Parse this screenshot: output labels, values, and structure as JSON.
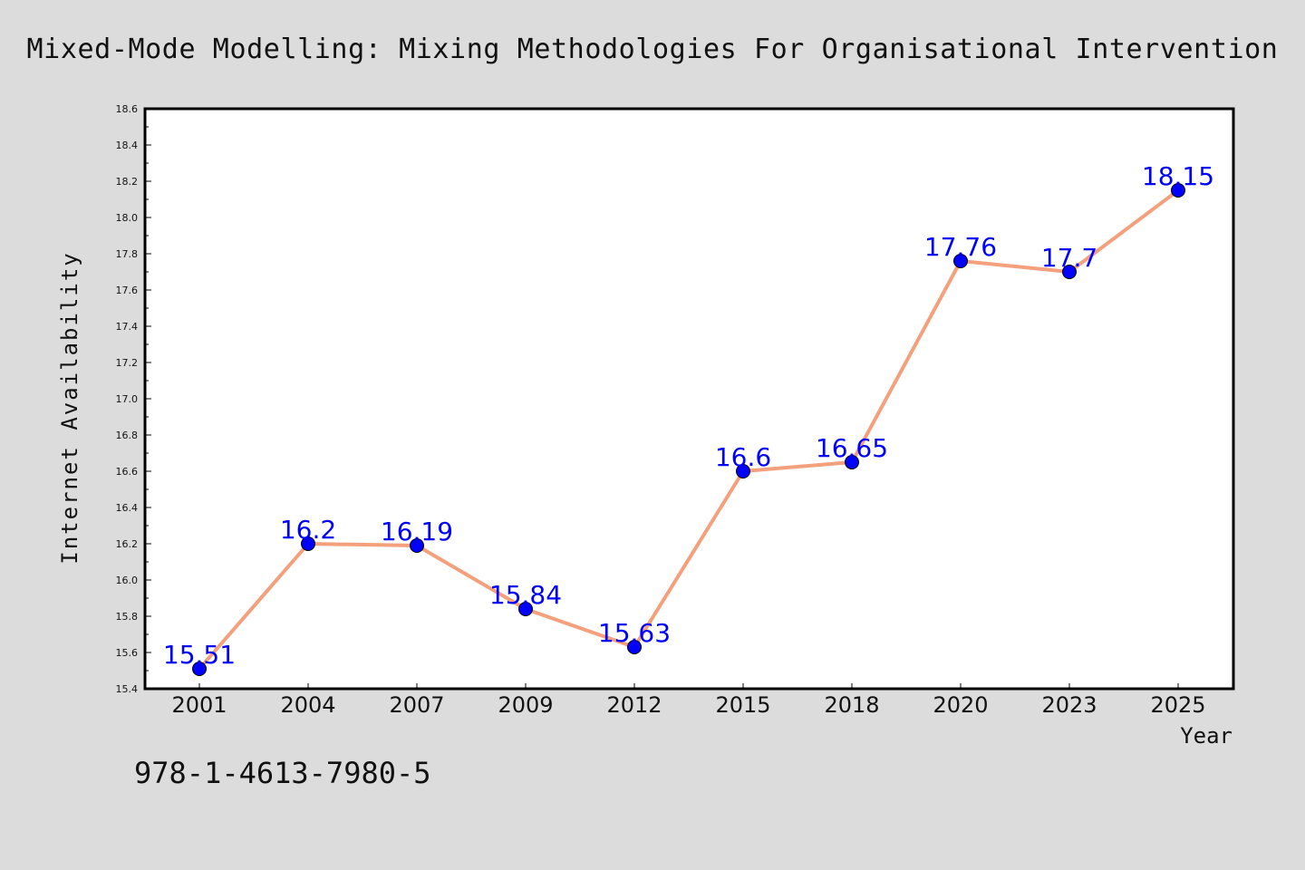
{
  "chart_data": {
    "type": "line",
    "title": "Mixed-Mode Modelling: Mixing Methodologies For Organisational Intervention",
    "xlabel": "Year",
    "ylabel": "Internet Availability",
    "categories": [
      "2001",
      "2004",
      "2007",
      "2009",
      "2012",
      "2015",
      "2018",
      "2020",
      "2023",
      "2025"
    ],
    "series": [
      {
        "values": [
          15.51,
          16.2,
          16.19,
          15.84,
          15.63,
          16.6,
          16.65,
          17.76,
          17.7,
          18.15
        ],
        "labels": [
          "15.51",
          "16.2",
          "16.19",
          "15.84",
          "15.63",
          "16.6",
          "16.65",
          "17.76",
          "17.7",
          "18.15"
        ]
      }
    ],
    "ylim": [
      15.4,
      18.6
    ],
    "yticks": [
      "15.4",
      "15.6",
      "15.8",
      "16.0",
      "16.2",
      "16.4",
      "16.6",
      "16.8",
      "17.0",
      "17.2",
      "17.4",
      "17.6",
      "17.8",
      "18.0",
      "18.2",
      "18.4",
      "18.6"
    ],
    "grid": false,
    "line_color": "#f4a07c",
    "marker_color": "#0000ff",
    "label_color": "#0000ff"
  },
  "footnote": "978-1-4613-7980-5",
  "background_color": "#dcdcdc",
  "plot_background_color": "#ffffff"
}
